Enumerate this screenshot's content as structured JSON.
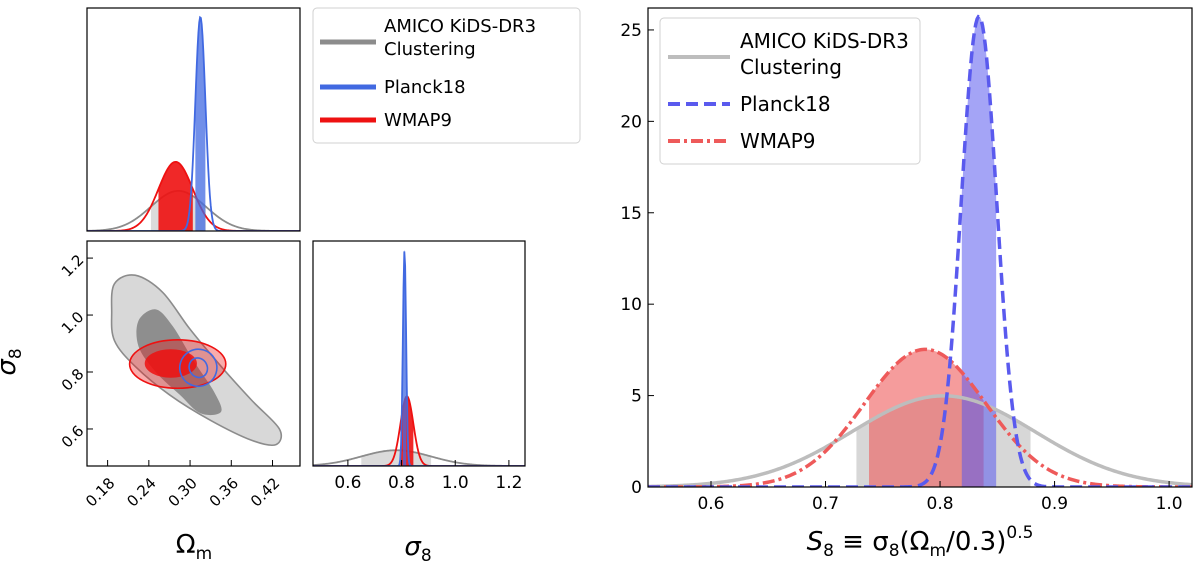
{
  "colors": {
    "amico": "#8c8c8c",
    "amico_light": "#bdbdbd",
    "planck": "#4169e1",
    "wmap": "#ee1111",
    "planck_s8": "#5a5aee",
    "wmap_s8": "#ee5a5a"
  },
  "chart_data": [
    {
      "type": "line",
      "name": "omega-m-marginal",
      "xlim": [
        0.15,
        0.46
      ],
      "ylim": [
        0,
        1
      ],
      "series": [
        {
          "name": "AMICO KiDS-DR3 Clustering",
          "mean": 0.283,
          "sigma": 0.04,
          "peak": 0.18
        },
        {
          "name": "Planck18",
          "mean": 0.315,
          "sigma": 0.0073,
          "peak": 0.96
        },
        {
          "name": "WMAP9",
          "mean": 0.279,
          "sigma": 0.025,
          "peak": 0.31
        }
      ]
    },
    {
      "type": "contour",
      "name": "omega-m-sigma8-joint",
      "xlabel": "Ω",
      "xlabel_sub": "m",
      "ylabel": "σ",
      "ylabel_sub": "8",
      "xlim": [
        0.15,
        0.46
      ],
      "ylim": [
        0.47,
        1.26
      ],
      "xticks": [
        0.18,
        0.24,
        0.3,
        0.36,
        0.42
      ],
      "xtick_labels": [
        "0.18",
        "0.24",
        "0.30",
        "0.36",
        "0.42"
      ],
      "yticks": [
        0.6,
        0.8,
        1.0,
        1.2
      ],
      "ytick_labels": [
        "0.6",
        "0.8",
        "1.0",
        "1.2"
      ]
    },
    {
      "type": "line",
      "name": "sigma8-marginal",
      "xlabel": "σ",
      "xlabel_sub": "8",
      "xlim": [
        0.47,
        1.26
      ],
      "ylim": [
        0,
        1
      ],
      "xticks": [
        0.6,
        0.8,
        1.0,
        1.2
      ],
      "xtick_labels": [
        "0.6",
        "0.8",
        "1.0",
        "1.2"
      ],
      "series": [
        {
          "name": "AMICO KiDS-DR3 Clustering",
          "mean": 0.78,
          "sigma": 0.13,
          "peak": 0.07
        },
        {
          "name": "Planck18",
          "mean": 0.811,
          "sigma": 0.006,
          "peak": 0.96
        },
        {
          "name": "WMAP9",
          "mean": 0.82,
          "sigma": 0.024,
          "peak": 0.31
        }
      ]
    },
    {
      "type": "line",
      "name": "s8-distribution",
      "xlabel": "S",
      "xlabel_sub": "8",
      "xlabel_rest": " ≡ σ",
      "xlabel_rest_sub": "8",
      "xlabel_tail": "(Ω",
      "xlabel_tail_sub": "m",
      "xlabel_end": "/0.3)",
      "xlabel_sup": "0.5",
      "xlim": [
        0.545,
        1.02
      ],
      "ylim": [
        0,
        26.2
      ],
      "xticks": [
        0.6,
        0.7,
        0.8,
        0.9,
        1.0
      ],
      "xtick_labels": [
        "0.6",
        "0.7",
        "0.8",
        "0.9",
        "1.0"
      ],
      "yticks": [
        0,
        5,
        10,
        15,
        20,
        25
      ],
      "ytick_labels": [
        "0",
        "5",
        "10",
        "15",
        "20",
        "25"
      ],
      "series": [
        {
          "name": "AMICO KiDS-DR3 Clustering",
          "mean": 0.803,
          "sigma": 0.08,
          "band": [
            0.727,
            0.879
          ]
        },
        {
          "name": "Planck18",
          "mean": 0.834,
          "sigma": 0.0155,
          "band": [
            0.819,
            0.849
          ]
        },
        {
          "name": "WMAP9",
          "mean": 0.787,
          "sigma": 0.053,
          "band": [
            0.738,
            0.838
          ]
        }
      ]
    }
  ],
  "legend_left": {
    "items": [
      {
        "line1": "AMICO KiDS-DR3",
        "line2": "Clustering"
      },
      {
        "line1": "Planck18",
        "line2": ""
      },
      {
        "line1": "WMAP9",
        "line2": ""
      }
    ]
  },
  "legend_right": {
    "items": [
      {
        "line1": "AMICO KiDS-DR3",
        "line2": "Clustering"
      },
      {
        "line1": "Planck18",
        "line2": ""
      },
      {
        "line1": "WMAP9",
        "line2": ""
      }
    ]
  }
}
